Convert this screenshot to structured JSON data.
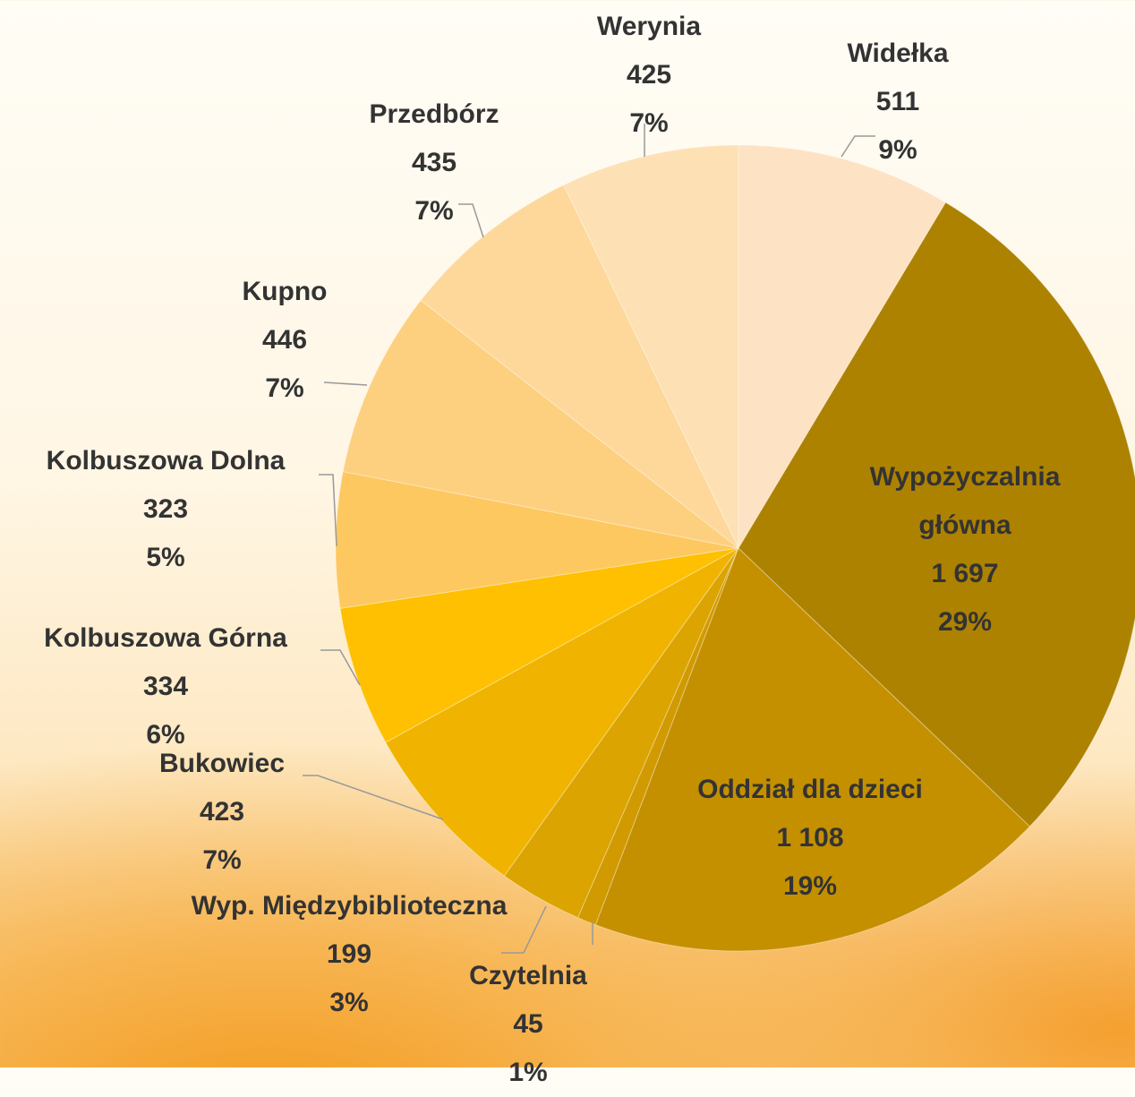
{
  "chart_data": {
    "type": "pie",
    "categories": [
      "Widełka",
      "Wypożyczalnia główna",
      "Oddział dla dzieci",
      "Czytelnia",
      "Wyp. Międzybiblioteczna",
      "Bukowiec",
      "Kolbuszowa Górna",
      "Kolbuszowa Dolna",
      "Kupno",
      "Przedbórz",
      "Werynia"
    ],
    "values": [
      511,
      1697,
      1108,
      45,
      199,
      423,
      334,
      323,
      446,
      435,
      425
    ],
    "value_labels": [
      "511",
      "1 697",
      "1 108",
      "45",
      "199",
      "423",
      "334",
      "323",
      "446",
      "435",
      "425"
    ],
    "percent_labels": [
      "9%",
      "29%",
      "19%",
      "1%",
      "3%",
      "7%",
      "6%",
      "5%",
      "7%",
      "7%",
      "7%"
    ],
    "colors": [
      "#fde3c4",
      "#ad8200",
      "#c49000",
      "#d09a00",
      "#dba400",
      "#f0b400",
      "#fec000",
      "#fdc860",
      "#fdd080",
      "#fdd89a",
      "#fde0b4"
    ]
  }
}
